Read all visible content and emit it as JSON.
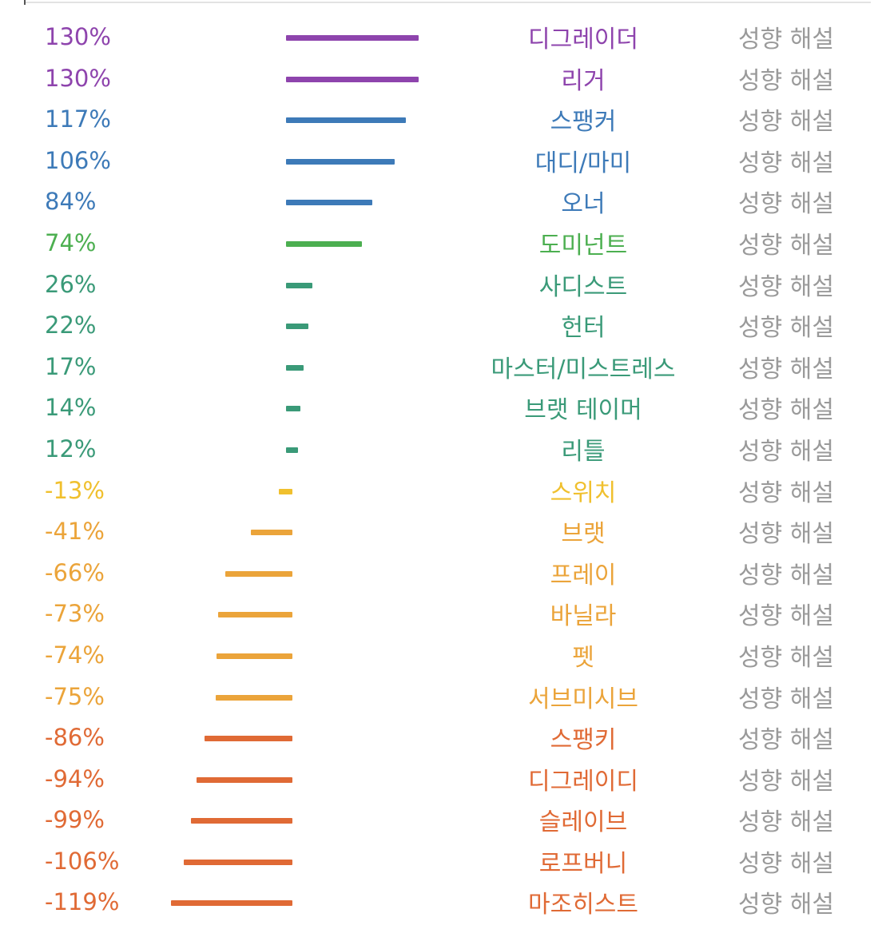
{
  "chart_data": {
    "type": "bar",
    "orientation": "horizontal",
    "link_label": "성향 해설",
    "xlim": [
      -119,
      130
    ],
    "rows": [
      {
        "category": "디그레이더",
        "value": 130,
        "value_label": "130%",
        "color": "#8e44ad"
      },
      {
        "category": "리거",
        "value": 130,
        "value_label": "130%",
        "color": "#8e44ad"
      },
      {
        "category": "스팽커",
        "value": 117,
        "value_label": "117%",
        "color": "#3d7ab8"
      },
      {
        "category": "대디/마미",
        "value": 106,
        "value_label": "106%",
        "color": "#3d7ab8"
      },
      {
        "category": "오너",
        "value": 84,
        "value_label": "84%",
        "color": "#3d7ab8"
      },
      {
        "category": "도미넌트",
        "value": 74,
        "value_label": "74%",
        "color": "#4caf50"
      },
      {
        "category": "사디스트",
        "value": 26,
        "value_label": "26%",
        "color": "#3a9a78"
      },
      {
        "category": "헌터",
        "value": 22,
        "value_label": "22%",
        "color": "#3a9a78"
      },
      {
        "category": "마스터/미스트레스",
        "value": 17,
        "value_label": "17%",
        "color": "#3a9a78"
      },
      {
        "category": "브랫 테이머",
        "value": 14,
        "value_label": "14%",
        "color": "#3a9a78"
      },
      {
        "category": "리틀",
        "value": 12,
        "value_label": "12%",
        "color": "#3a9a78"
      },
      {
        "category": "스위치",
        "value": -13,
        "value_label": "-13%",
        "color": "#f0c02e"
      },
      {
        "category": "브랫",
        "value": -41,
        "value_label": "-41%",
        "color": "#eba43a"
      },
      {
        "category": "프레이",
        "value": -66,
        "value_label": "-66%",
        "color": "#eba43a"
      },
      {
        "category": "바닐라",
        "value": -73,
        "value_label": "-73%",
        "color": "#eba43a"
      },
      {
        "category": "펫",
        "value": -74,
        "value_label": "-74%",
        "color": "#eba43a"
      },
      {
        "category": "서브미시브",
        "value": -75,
        "value_label": "-75%",
        "color": "#eba43a"
      },
      {
        "category": "스팽키",
        "value": -86,
        "value_label": "-86%",
        "color": "#e06a35"
      },
      {
        "category": "디그레이디",
        "value": -94,
        "value_label": "-94%",
        "color": "#e06a35"
      },
      {
        "category": "슬레이브",
        "value": -99,
        "value_label": "-99%",
        "color": "#e06a35"
      },
      {
        "category": "로프버니",
        "value": -106,
        "value_label": "-106%",
        "color": "#e06a35"
      },
      {
        "category": "마조히스트",
        "value": -119,
        "value_label": "-119%",
        "color": "#e06a35"
      }
    ]
  }
}
